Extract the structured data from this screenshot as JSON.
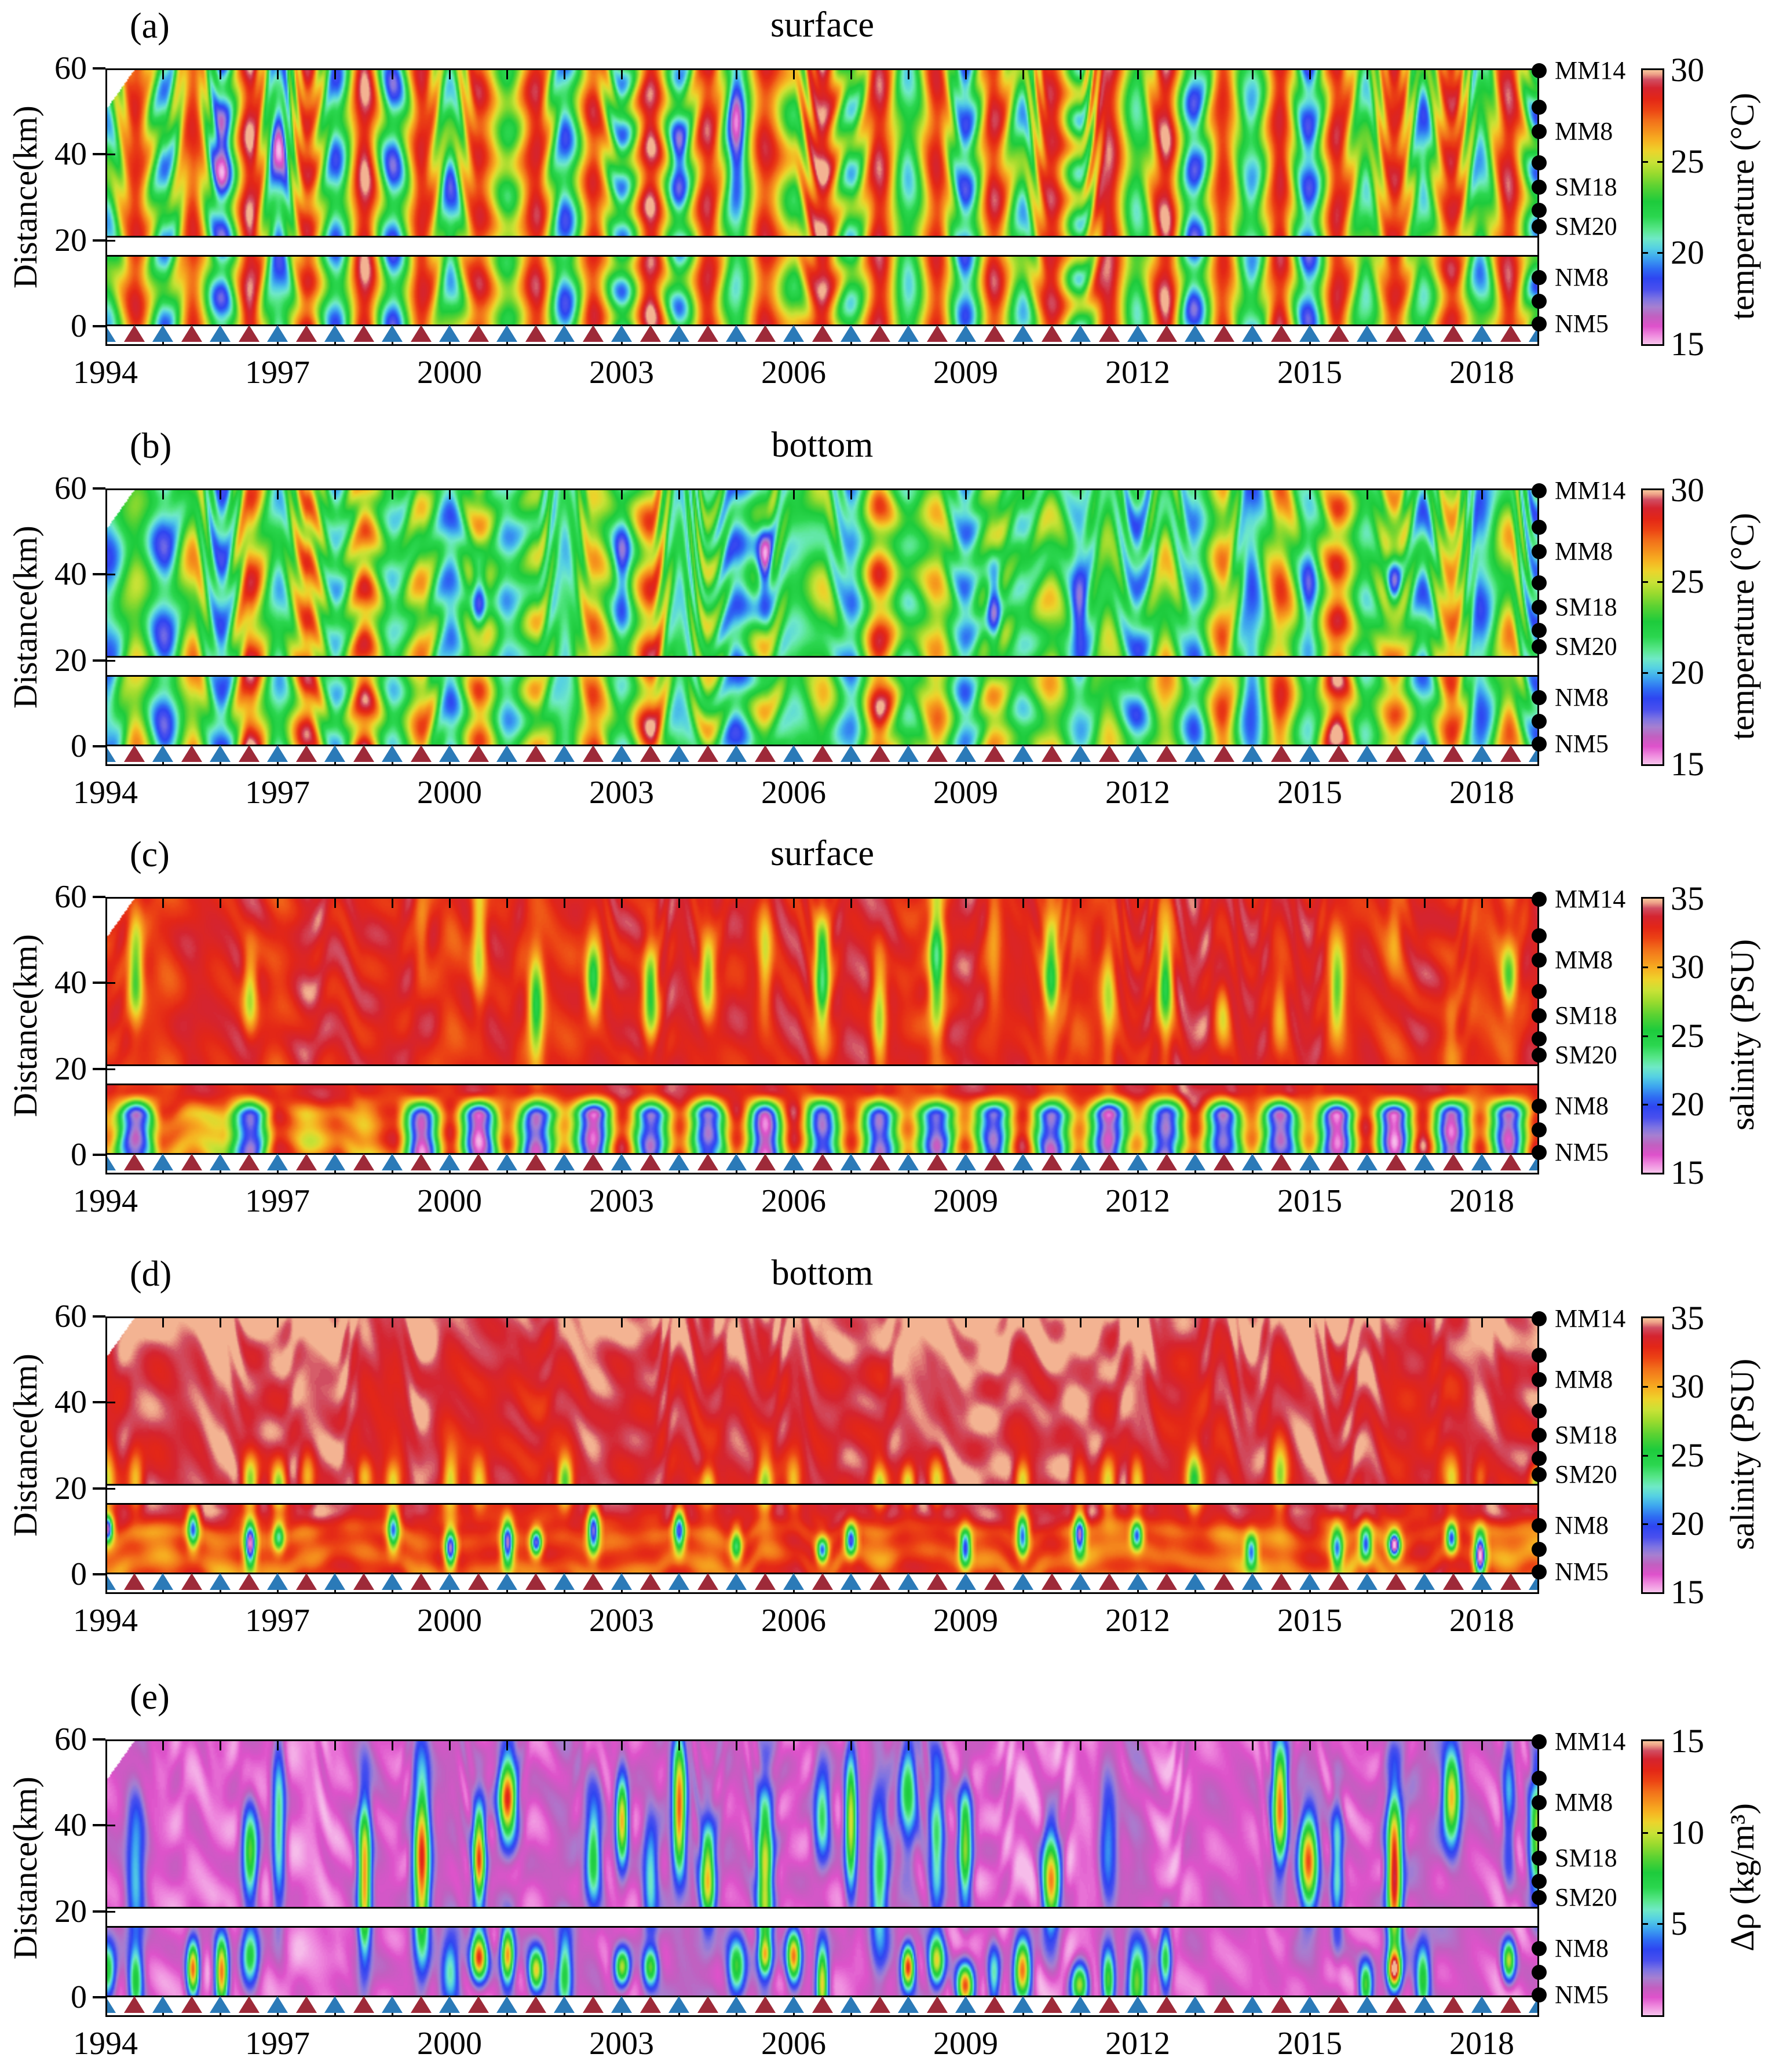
{
  "chart_data": {
    "type": "heatmap",
    "description": "Five time-distance (Hovmoller) contour panels along a 60 km transect, 1994-2019: (a) surface temperature, (b) bottom temperature, (c) surface salinity, (d) bottom salinity, (e) surface-to-bottom density difference. Each panel is split into an upper band (21-60 km) and a lower band (0-16.6 km) separated by a white gap. Black dots on the right edge mark mooring stations; alternating blue and dark-red triangles along the bottom mark半-yearly surveys.",
    "x_axis": {
      "start_year": 1994,
      "end_year": 2019,
      "minor_tick_every_years": 1,
      "labeled_ticks": [
        {
          "year": 1994,
          "label": "1994"
        },
        {
          "year": 1997,
          "label": "1997"
        },
        {
          "year": 2000,
          "label": "2000"
        },
        {
          "year": 2003,
          "label": "2003"
        },
        {
          "year": 2006,
          "label": "2006"
        },
        {
          "year": 2009,
          "label": "2009"
        },
        {
          "year": 2012,
          "label": "2012"
        },
        {
          "year": 2015,
          "label": "2015"
        },
        {
          "year": 2018,
          "label": "2018"
        }
      ]
    },
    "y_axis": {
      "label": "Distance(km)",
      "range_km": [
        0,
        60
      ],
      "band_gap_km": [
        16.6,
        21
      ],
      "ticks": [
        {
          "km": 60,
          "label": "60"
        },
        {
          "km": 40,
          "label": "40"
        },
        {
          "km": 20,
          "label": "20"
        },
        {
          "km": 0,
          "label": "0"
        }
      ]
    },
    "stations": [
      {
        "label": "MM14",
        "km": 59.5
      },
      {
        "label": "",
        "km": 51.0
      },
      {
        "label": "MM8",
        "km": 45.3
      },
      {
        "label": "",
        "km": 38.0
      },
      {
        "label": "SM18",
        "km": 32.3
      },
      {
        "label": "",
        "km": 27.0
      },
      {
        "label": "SM20",
        "km": 23.2
      },
      {
        "label": "NM8",
        "km": 11.3
      },
      {
        "label": "",
        "km": 5.8
      },
      {
        "label": "NM5",
        "km": 0.5
      }
    ],
    "survey_markers": {
      "first_year": 1994,
      "interval_years": 0.5,
      "count": 51,
      "shape": "triangle-up",
      "colors": [
        "#2b7ab8",
        "#9e2a39"
      ]
    },
    "colormap_stops": [
      [
        0.0,
        "#f7c3ec"
      ],
      [
        0.035,
        "#ee86dd"
      ],
      [
        0.065,
        "#de52cb"
      ],
      [
        0.1,
        "#c25fc0"
      ],
      [
        0.135,
        "#a77fd0"
      ],
      [
        0.165,
        "#7f74e2"
      ],
      [
        0.2,
        "#4a50ee"
      ],
      [
        0.24,
        "#2e45f1"
      ],
      [
        0.275,
        "#2e6cf3"
      ],
      [
        0.315,
        "#3da5ef"
      ],
      [
        0.35,
        "#55d0e3"
      ],
      [
        0.385,
        "#6fe9c6"
      ],
      [
        0.42,
        "#57e68a"
      ],
      [
        0.465,
        "#2bd64f"
      ],
      [
        0.52,
        "#1dcb3c"
      ],
      [
        0.575,
        "#5ad232"
      ],
      [
        0.625,
        "#9cdb2e"
      ],
      [
        0.665,
        "#c9e236"
      ],
      [
        0.705,
        "#edd32b"
      ],
      [
        0.74,
        "#f6b422"
      ],
      [
        0.775,
        "#f5941d"
      ],
      [
        0.815,
        "#f2701a"
      ],
      [
        0.855,
        "#ec4314"
      ],
      [
        0.895,
        "#e32617"
      ],
      [
        0.935,
        "#d42430"
      ],
      [
        0.965,
        "#d14e62"
      ],
      [
        0.985,
        "#eda188"
      ],
      [
        1.0,
        "#f9c79c"
      ]
    ],
    "panels": [
      {
        "letter": "(a)",
        "title": "surface",
        "variable": "surface temperature",
        "colorbar": {
          "unit_label": "temperature (°C)",
          "min": 15,
          "max": 30,
          "ticks": [
            {
              "value": 30,
              "label": "30"
            },
            {
              "value": 25,
              "label": "25"
            },
            {
              "value": 20,
              "label": "20"
            },
            {
              "value": 15,
              "label": "15"
            }
          ]
        },
        "render": {
          "kind": "ta",
          "seed": 101
        }
      },
      {
        "letter": "(b)",
        "title": "bottom",
        "variable": "bottom temperature",
        "colorbar": {
          "unit_label": "temperature (°C)",
          "min": 15,
          "max": 30,
          "ticks": [
            {
              "value": 30,
              "label": "30"
            },
            {
              "value": 25,
              "label": "25"
            },
            {
              "value": 20,
              "label": "20"
            },
            {
              "value": 15,
              "label": "15"
            }
          ]
        },
        "render": {
          "kind": "tb",
          "seed": 202
        }
      },
      {
        "letter": "(c)",
        "title": "surface",
        "variable": "surface salinity",
        "colorbar": {
          "unit_label": "salinity (PSU)",
          "min": 15,
          "max": 35,
          "ticks": [
            {
              "value": 35,
              "label": "35"
            },
            {
              "value": 30,
              "label": "30"
            },
            {
              "value": 25,
              "label": "25"
            },
            {
              "value": 20,
              "label": "20"
            },
            {
              "value": 15,
              "label": "15"
            }
          ]
        },
        "render": {
          "kind": "sc",
          "seed": 303
        }
      },
      {
        "letter": "(d)",
        "title": "bottom",
        "variable": "bottom salinity",
        "colorbar": {
          "unit_label": "salinity (PSU)",
          "min": 15,
          "max": 35,
          "ticks": [
            {
              "value": 35,
              "label": "35"
            },
            {
              "value": 30,
              "label": "30"
            },
            {
              "value": 25,
              "label": "25"
            },
            {
              "value": 20,
              "label": "20"
            },
            {
              "value": 15,
              "label": "15"
            }
          ]
        },
        "render": {
          "kind": "sd",
          "seed": 404
        }
      },
      {
        "letter": "(e)",
        "title": "",
        "variable": "density difference",
        "colorbar": {
          "unit_label": "Δρ (kg/m³)",
          "min": 0,
          "max": 15,
          "ticks": [
            {
              "value": 15,
              "label": "15"
            },
            {
              "value": 10,
              "label": "10"
            },
            {
              "value": 5,
              "label": "5"
            }
          ]
        },
        "render": {
          "kind": "e",
          "seed": 505
        }
      }
    ]
  }
}
